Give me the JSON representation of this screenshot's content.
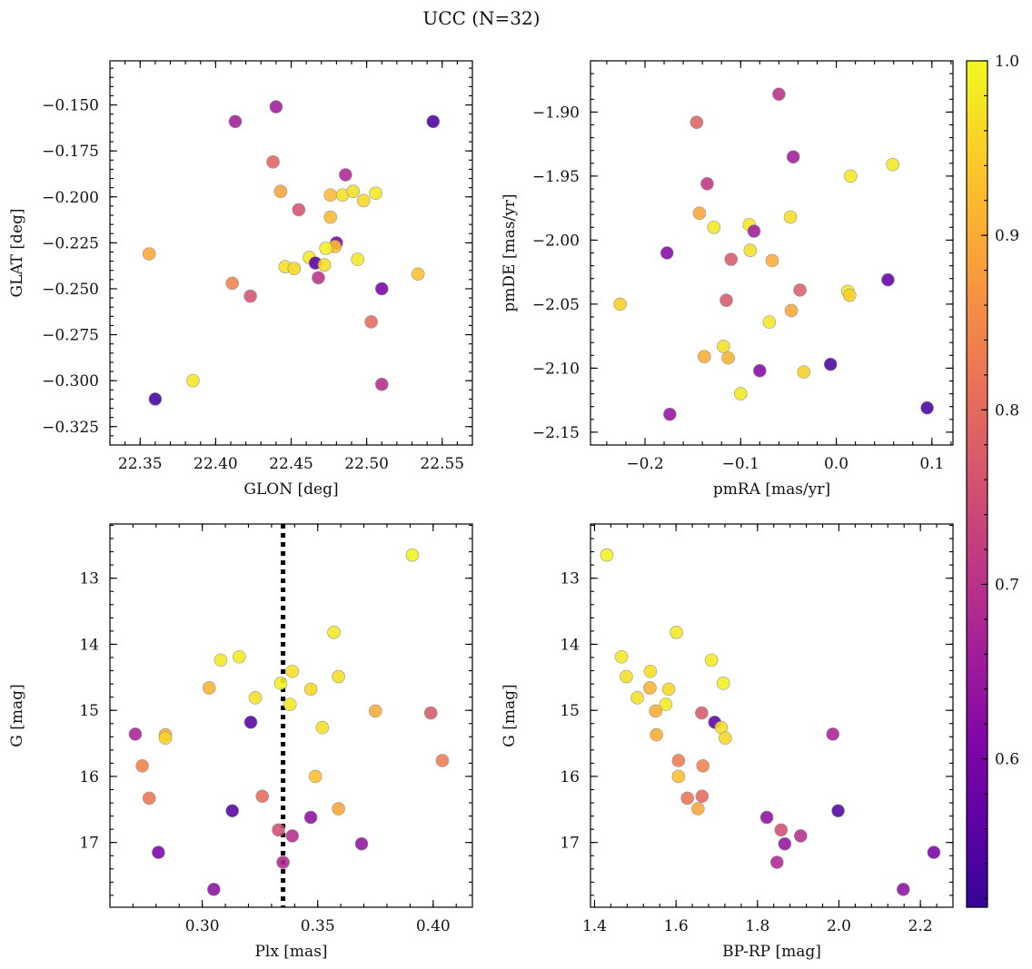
{
  "suptitle": "UCC (N=32)",
  "colorbar": {
    "range": [
      0.515,
      1.0
    ],
    "ticks": [
      0.6,
      0.7,
      0.8,
      0.9,
      1.0
    ],
    "tick_labels": [
      "0.6",
      "0.7",
      "0.8",
      "0.9",
      "1.0"
    ],
    "colormap": "plasma"
  },
  "chart_data": [
    {
      "type": "scatter",
      "name": "glon-glat",
      "xlabel": "GLON [deg]",
      "ylabel": "GLAT [deg]",
      "xlim": [
        22.33,
        22.57
      ],
      "ylim": [
        -0.335,
        -0.126
      ],
      "y_inverted": false,
      "xticks": [
        22.35,
        22.4,
        22.45,
        22.5,
        22.55
      ],
      "xtick_labels": [
        "22.35",
        "22.40",
        "22.45",
        "22.50",
        "22.55"
      ],
      "yticks": [
        -0.325,
        -0.3,
        -0.275,
        -0.25,
        -0.225,
        -0.2,
        -0.175,
        -0.15
      ],
      "ytick_labels": [
        "−0.325",
        "−0.300",
        "−0.275",
        "−0.250",
        "−0.225",
        "−0.200",
        "−0.175",
        "−0.150"
      ],
      "points": [
        {
          "x": 22.413,
          "y": -0.159,
          "c": 0.66
        },
        {
          "x": 22.44,
          "y": -0.151,
          "c": 0.66
        },
        {
          "x": 22.544,
          "y": -0.159,
          "c": 0.54
        },
        {
          "x": 22.438,
          "y": -0.181,
          "c": 0.79
        },
        {
          "x": 22.486,
          "y": -0.188,
          "c": 0.68
        },
        {
          "x": 22.443,
          "y": -0.197,
          "c": 0.89
        },
        {
          "x": 22.476,
          "y": -0.199,
          "c": 0.92
        },
        {
          "x": 22.484,
          "y": -0.199,
          "c": 0.97
        },
        {
          "x": 22.491,
          "y": -0.197,
          "c": 0.97
        },
        {
          "x": 22.506,
          "y": -0.198,
          "c": 0.98
        },
        {
          "x": 22.498,
          "y": -0.202,
          "c": 0.96
        },
        {
          "x": 22.455,
          "y": -0.207,
          "c": 0.76
        },
        {
          "x": 22.476,
          "y": -0.211,
          "c": 0.92
        },
        {
          "x": 22.48,
          "y": -0.225,
          "c": 0.6
        },
        {
          "x": 22.479,
          "y": -0.227,
          "c": 0.93
        },
        {
          "x": 22.473,
          "y": -0.228,
          "c": 0.99
        },
        {
          "x": 22.356,
          "y": -0.231,
          "c": 0.89
        },
        {
          "x": 22.462,
          "y": -0.233,
          "c": 0.98
        },
        {
          "x": 22.494,
          "y": -0.234,
          "c": 0.98
        },
        {
          "x": 22.466,
          "y": -0.236,
          "c": 0.56
        },
        {
          "x": 22.472,
          "y": -0.237,
          "c": 0.97
        },
        {
          "x": 22.446,
          "y": -0.238,
          "c": 0.97
        },
        {
          "x": 22.452,
          "y": -0.239,
          "c": 0.96
        },
        {
          "x": 22.534,
          "y": -0.242,
          "c": 0.93
        },
        {
          "x": 22.468,
          "y": -0.244,
          "c": 0.7
        },
        {
          "x": 22.411,
          "y": -0.247,
          "c": 0.84
        },
        {
          "x": 22.51,
          "y": -0.25,
          "c": 0.6
        },
        {
          "x": 22.423,
          "y": -0.254,
          "c": 0.76
        },
        {
          "x": 22.503,
          "y": -0.268,
          "c": 0.8
        },
        {
          "x": 22.385,
          "y": -0.3,
          "c": 0.98
        },
        {
          "x": 22.51,
          "y": -0.302,
          "c": 0.69
        },
        {
          "x": 22.36,
          "y": -0.31,
          "c": 0.53
        }
      ]
    },
    {
      "type": "scatter",
      "name": "pmra-pmde",
      "xlabel": "pmRA [mas/yr]",
      "ylabel": "pmDE [mas/yr]",
      "xlim": [
        -0.257,
        0.122
      ],
      "ylim": [
        -2.16,
        -1.86
      ],
      "y_inverted": false,
      "xticks": [
        -0.2,
        -0.1,
        0.0,
        0.1
      ],
      "xtick_labels": [
        "−0.2",
        "−0.1",
        "0.0",
        "0.1"
      ],
      "yticks": [
        -2.15,
        -2.1,
        -2.05,
        -2.0,
        -1.95,
        -1.9
      ],
      "ytick_labels": [
        "−2.15",
        "−2.10",
        "−2.05",
        "−2.00",
        "−1.95",
        "−1.90"
      ],
      "points": [
        {
          "x": -0.06,
          "y": -1.886,
          "c": 0.7
        },
        {
          "x": -0.146,
          "y": -1.908,
          "c": 0.79
        },
        {
          "x": -0.045,
          "y": -1.935,
          "c": 0.66
        },
        {
          "x": 0.015,
          "y": -1.95,
          "c": 0.98
        },
        {
          "x": 0.059,
          "y": -1.941,
          "c": 0.98
        },
        {
          "x": -0.135,
          "y": -1.956,
          "c": 0.71
        },
        {
          "x": -0.143,
          "y": -1.979,
          "c": 0.89
        },
        {
          "x": -0.128,
          "y": -1.99,
          "c": 0.98
        },
        {
          "x": -0.091,
          "y": -1.988,
          "c": 0.98
        },
        {
          "x": -0.086,
          "y": -1.993,
          "c": 0.66
        },
        {
          "x": -0.048,
          "y": -1.982,
          "c": 0.97
        },
        {
          "x": -0.177,
          "y": -2.01,
          "c": 0.62
        },
        {
          "x": -0.09,
          "y": -2.008,
          "c": 0.97
        },
        {
          "x": -0.11,
          "y": -2.015,
          "c": 0.77
        },
        {
          "x": -0.067,
          "y": -2.016,
          "c": 0.9
        },
        {
          "x": 0.054,
          "y": -2.031,
          "c": 0.57
        },
        {
          "x": -0.038,
          "y": -2.039,
          "c": 0.78
        },
        {
          "x": 0.012,
          "y": -2.04,
          "c": 0.98
        },
        {
          "x": 0.014,
          "y": -2.043,
          "c": 0.95
        },
        {
          "x": -0.115,
          "y": -2.047,
          "c": 0.77
        },
        {
          "x": -0.226,
          "y": -2.05,
          "c": 0.95
        },
        {
          "x": -0.047,
          "y": -2.055,
          "c": 0.89
        },
        {
          "x": -0.07,
          "y": -2.064,
          "c": 0.98
        },
        {
          "x": -0.118,
          "y": -2.083,
          "c": 0.97
        },
        {
          "x": -0.138,
          "y": -2.091,
          "c": 0.9
        },
        {
          "x": -0.113,
          "y": -2.092,
          "c": 0.91
        },
        {
          "x": -0.08,
          "y": -2.102,
          "c": 0.62
        },
        {
          "x": -0.034,
          "y": -2.103,
          "c": 0.95
        },
        {
          "x": -0.006,
          "y": -2.097,
          "c": 0.54
        },
        {
          "x": -0.174,
          "y": -2.136,
          "c": 0.64
        },
        {
          "x": 0.095,
          "y": -2.131,
          "c": 0.54
        },
        {
          "x": -0.1,
          "y": -2.12,
          "c": 0.98
        }
      ]
    },
    {
      "type": "scatter",
      "name": "plx-g",
      "xlabel": "Plx [mas]",
      "ylabel": "G [mag]",
      "xlim": [
        0.26,
        0.417
      ],
      "ylim": [
        17.98,
        12.18
      ],
      "y_inverted": true,
      "xticks": [
        0.3,
        0.35,
        0.4
      ],
      "xtick_labels": [
        "0.30",
        "0.35",
        "0.40"
      ],
      "yticks": [
        13,
        14,
        15,
        16,
        17
      ],
      "ytick_labels": [
        "13",
        "14",
        "15",
        "16",
        "17"
      ],
      "vline": {
        "x": 0.335,
        "style": "dotted",
        "color": "#000000"
      },
      "points": [
        {
          "x": 0.391,
          "y": 12.65,
          "c": 0.99
        },
        {
          "x": 0.357,
          "y": 13.82,
          "c": 0.98
        },
        {
          "x": 0.308,
          "y": 14.24,
          "c": 0.98
        },
        {
          "x": 0.316,
          "y": 14.19,
          "c": 0.98
        },
        {
          "x": 0.339,
          "y": 14.41,
          "c": 0.97
        },
        {
          "x": 0.359,
          "y": 14.49,
          "c": 0.97
        },
        {
          "x": 0.334,
          "y": 14.59,
          "c": 0.99
        },
        {
          "x": 0.303,
          "y": 14.66,
          "c": 0.91
        },
        {
          "x": 0.347,
          "y": 14.68,
          "c": 0.96
        },
        {
          "x": 0.323,
          "y": 14.81,
          "c": 0.97
        },
        {
          "x": 0.338,
          "y": 14.91,
          "c": 0.98
        },
        {
          "x": 0.375,
          "y": 15.01,
          "c": 0.9
        },
        {
          "x": 0.399,
          "y": 15.04,
          "c": 0.77
        },
        {
          "x": 0.321,
          "y": 15.18,
          "c": 0.56
        },
        {
          "x": 0.352,
          "y": 15.26,
          "c": 0.97
        },
        {
          "x": 0.271,
          "y": 15.36,
          "c": 0.67
        },
        {
          "x": 0.284,
          "y": 15.37,
          "c": 0.9
        },
        {
          "x": 0.284,
          "y": 15.42,
          "c": 0.96
        },
        {
          "x": 0.404,
          "y": 15.76,
          "c": 0.83
        },
        {
          "x": 0.274,
          "y": 15.84,
          "c": 0.84
        },
        {
          "x": 0.349,
          "y": 16.0,
          "c": 0.93
        },
        {
          "x": 0.326,
          "y": 16.3,
          "c": 0.8
        },
        {
          "x": 0.277,
          "y": 16.33,
          "c": 0.82
        },
        {
          "x": 0.359,
          "y": 16.49,
          "c": 0.89
        },
        {
          "x": 0.313,
          "y": 16.52,
          "c": 0.55
        },
        {
          "x": 0.347,
          "y": 16.62,
          "c": 0.63
        },
        {
          "x": 0.333,
          "y": 16.81,
          "c": 0.75
        },
        {
          "x": 0.339,
          "y": 16.9,
          "c": 0.69
        },
        {
          "x": 0.369,
          "y": 17.02,
          "c": 0.64
        },
        {
          "x": 0.281,
          "y": 17.15,
          "c": 0.6
        },
        {
          "x": 0.335,
          "y": 17.3,
          "c": 0.68
        },
        {
          "x": 0.305,
          "y": 17.71,
          "c": 0.63
        }
      ]
    },
    {
      "type": "scatter",
      "name": "bprp-g",
      "xlabel": "BP-RP [mag]",
      "ylabel": "G [mag]",
      "xlim": [
        1.39,
        2.28
      ],
      "ylim": [
        17.98,
        12.18
      ],
      "y_inverted": true,
      "xticks": [
        1.4,
        1.6,
        1.8,
        2.0,
        2.2
      ],
      "xtick_labels": [
        "1.4",
        "1.6",
        "1.8",
        "2.0",
        "2.2"
      ],
      "yticks": [
        13,
        14,
        15,
        16,
        17
      ],
      "ytick_labels": [
        "13",
        "14",
        "15",
        "16",
        "17"
      ],
      "points": [
        {
          "x": 1.43,
          "y": 12.65,
          "c": 0.99
        },
        {
          "x": 1.601,
          "y": 13.82,
          "c": 0.98
        },
        {
          "x": 1.466,
          "y": 14.19,
          "c": 0.98
        },
        {
          "x": 1.687,
          "y": 14.24,
          "c": 0.98
        },
        {
          "x": 1.537,
          "y": 14.41,
          "c": 0.97
        },
        {
          "x": 1.478,
          "y": 14.49,
          "c": 0.97
        },
        {
          "x": 1.716,
          "y": 14.59,
          "c": 0.99
        },
        {
          "x": 1.536,
          "y": 14.66,
          "c": 0.91
        },
        {
          "x": 1.582,
          "y": 14.68,
          "c": 0.96
        },
        {
          "x": 1.505,
          "y": 14.81,
          "c": 0.97
        },
        {
          "x": 1.575,
          "y": 14.91,
          "c": 0.98
        },
        {
          "x": 1.55,
          "y": 15.01,
          "c": 0.9
        },
        {
          "x": 1.663,
          "y": 15.04,
          "c": 0.77
        },
        {
          "x": 1.695,
          "y": 15.18,
          "c": 0.56
        },
        {
          "x": 1.711,
          "y": 15.26,
          "c": 0.97
        },
        {
          "x": 1.552,
          "y": 15.37,
          "c": 0.9
        },
        {
          "x": 1.985,
          "y": 15.36,
          "c": 0.67
        },
        {
          "x": 1.721,
          "y": 15.42,
          "c": 0.96
        },
        {
          "x": 1.606,
          "y": 15.76,
          "c": 0.83
        },
        {
          "x": 1.666,
          "y": 15.84,
          "c": 0.84
        },
        {
          "x": 1.606,
          "y": 16.0,
          "c": 0.93
        },
        {
          "x": 1.628,
          "y": 16.33,
          "c": 0.82
        },
        {
          "x": 1.664,
          "y": 16.3,
          "c": 0.8
        },
        {
          "x": 1.654,
          "y": 16.49,
          "c": 0.89
        },
        {
          "x": 1.998,
          "y": 16.52,
          "c": 0.55
        },
        {
          "x": 1.823,
          "y": 16.62,
          "c": 0.63
        },
        {
          "x": 1.858,
          "y": 16.81,
          "c": 0.75
        },
        {
          "x": 1.906,
          "y": 16.9,
          "c": 0.69
        },
        {
          "x": 1.867,
          "y": 17.02,
          "c": 0.64
        },
        {
          "x": 2.233,
          "y": 17.15,
          "c": 0.6
        },
        {
          "x": 1.848,
          "y": 17.3,
          "c": 0.68
        },
        {
          "x": 2.158,
          "y": 17.71,
          "c": 0.63
        }
      ]
    }
  ]
}
